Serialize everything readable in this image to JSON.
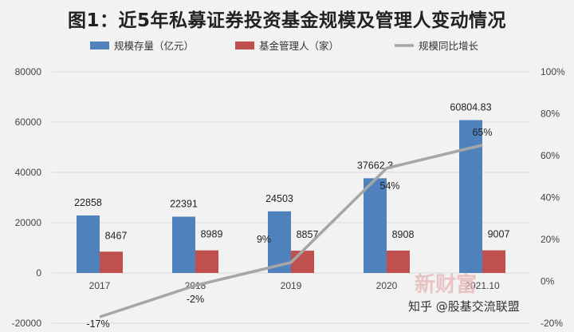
{
  "chart_data": {
    "type": "bar",
    "title": "图1：近5年私募证券投资基金规模及管理人变动情况",
    "categories": [
      "2017",
      "2018",
      "2019",
      "2020",
      "2021.10"
    ],
    "series": [
      {
        "name": "规模存量（亿元）",
        "type": "bar",
        "axis": "left",
        "color": "#4f81bd",
        "values": [
          22858,
          22391,
          24503,
          37662.3,
          60804.83
        ],
        "labels": [
          "22858",
          "22391",
          "24503",
          "37662.3",
          "60804.83"
        ]
      },
      {
        "name": "基金管理人（家）",
        "type": "bar",
        "axis": "left",
        "color": "#c0504d",
        "values": [
          8467,
          8989,
          8857,
          8908,
          9007
        ],
        "labels": [
          "8467",
          "8989",
          "8857",
          "8908",
          "9007"
        ]
      },
      {
        "name": "规模同比增长",
        "type": "line",
        "axis": "right",
        "color": "#a6a6a6",
        "values": [
          -17,
          -2,
          9,
          54,
          65
        ],
        "labels": [
          "-17%",
          "-2%",
          "9%",
          "54%",
          "65%"
        ]
      }
    ],
    "y_left": {
      "min": -20000,
      "max": 80000,
      "ticks": [
        "-20000",
        "0",
        "20000",
        "40000",
        "60000",
        "80000"
      ]
    },
    "y_right": {
      "min": -20,
      "max": 100,
      "ticks": [
        "-20%",
        "0%",
        "20%",
        "40%",
        "60%",
        "80%",
        "100%"
      ]
    },
    "grid": true,
    "legend_position": "top"
  },
  "watermark": {
    "text": "知乎 @股基交流联盟",
    "stamp": "新财富"
  }
}
